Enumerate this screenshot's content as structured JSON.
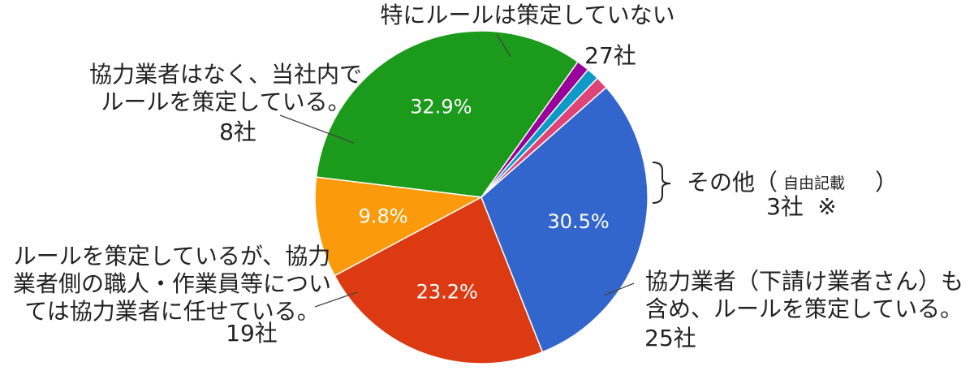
{
  "chart_data": {
    "type": "pie",
    "slices": [
      {
        "label_lines": [
          "特にルールは策定していない"
        ],
        "count": "27社",
        "value": 27,
        "percent_label": "32.9%",
        "color": "#1c9a1c"
      },
      {
        "label_lines": [
          "協力業者はなく、当社内で",
          "ルールを策定している。"
        ],
        "count": "8社",
        "value": 8,
        "percent_label": "9.8%",
        "color": "#fb9a0a"
      },
      {
        "label_lines": [
          "ルールを策定しているが、協力",
          "業者側の職人・作業員等につい",
          "ては協力業者に任せている。"
        ],
        "count": "19社",
        "value": 19,
        "percent_label": "23.2%",
        "color": "#dc3a12"
      },
      {
        "label_lines": [
          "協力業者（下請け業者さん）も",
          "含め、ルールを策定している。"
        ],
        "count": "25社",
        "value": 25,
        "percent_label": "30.5%",
        "color": "#3366cc"
      },
      {
        "label_lines": [],
        "count": "",
        "value": 1,
        "percent_label": "",
        "color": "#dd4477"
      },
      {
        "label_lines": [],
        "count": "",
        "value": 1,
        "percent_label": "",
        "color": "#0f99c6"
      },
      {
        "label_lines": [],
        "count": "",
        "value": 1,
        "percent_label": "",
        "color": "#990099"
      }
    ],
    "other_group": {
      "label_prefix": "その他（",
      "label_note": "自由記載",
      "label_suffix": "）",
      "count": "3社",
      "mark": "※"
    }
  }
}
